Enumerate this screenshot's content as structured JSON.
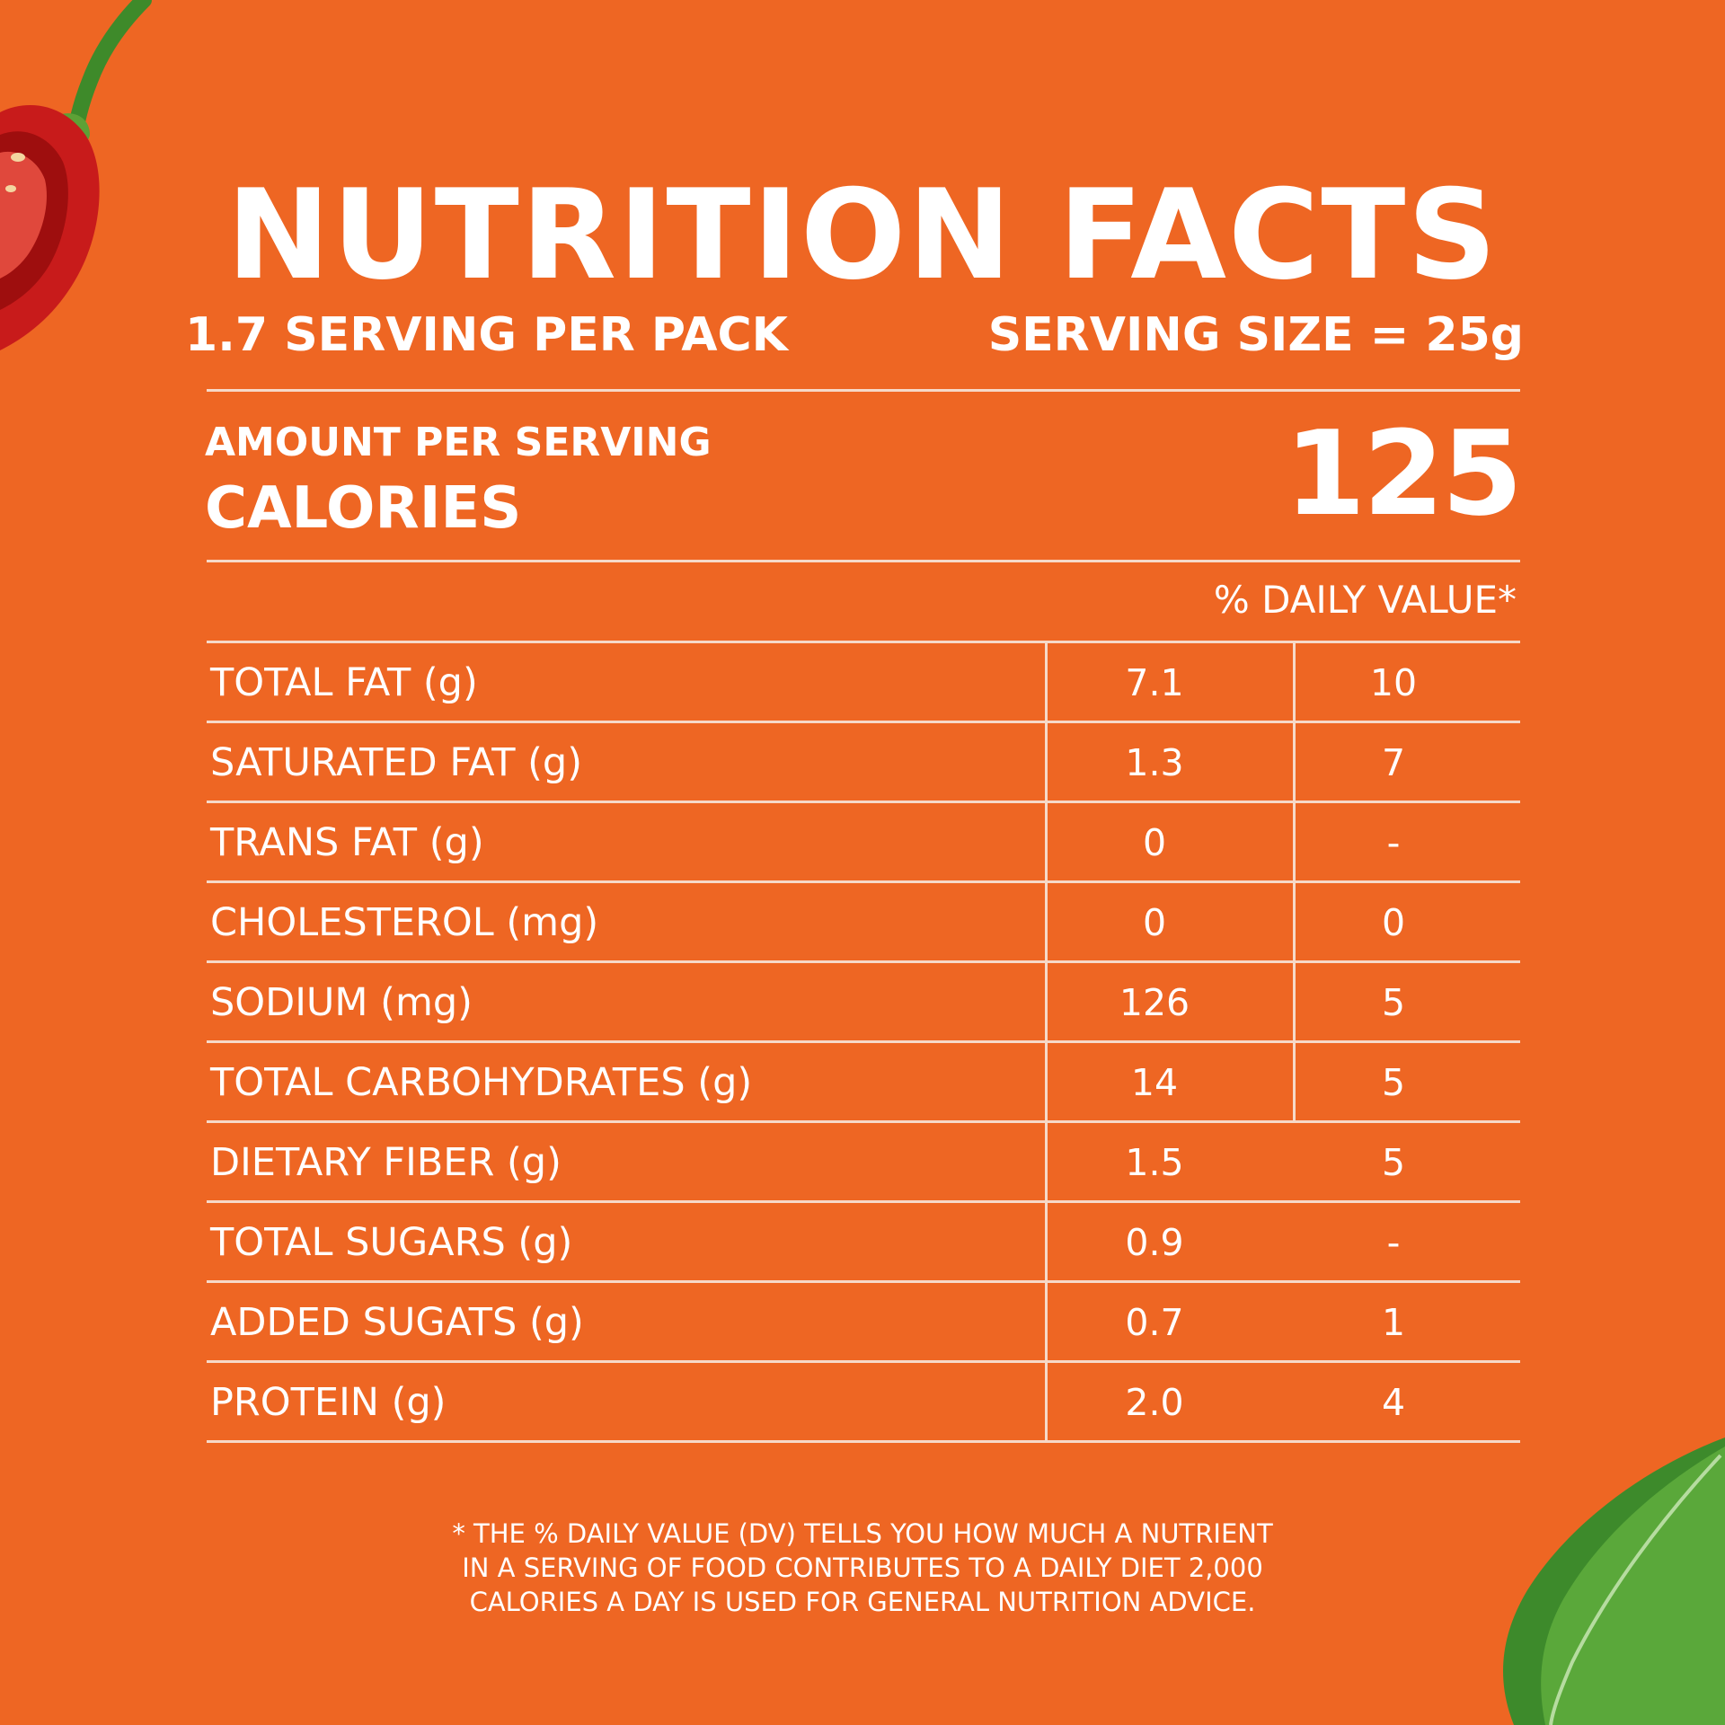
{
  "header": {
    "title": "NUTRITION FACTS",
    "servings_per_pack": "1.7 SERVING PER PACK",
    "serving_size": "SERVING SIZE = 25g"
  },
  "calories": {
    "amount_label": "AMOUNT PER SERVING",
    "label": "CALORIES",
    "value": "125"
  },
  "daily_value_header": "% DAILY VALUE*",
  "nutrients": [
    {
      "label": "TOTAL FAT (g)",
      "amount": "7.1",
      "dv": "10"
    },
    {
      "label": "SATURATED FAT (g)",
      "amount": "1.3",
      "dv": "7"
    },
    {
      "label": "TRANS FAT (g)",
      "amount": "0",
      "dv": "-"
    },
    {
      "label": "CHOLESTEROL (mg)",
      "amount": "0",
      "dv": "0"
    },
    {
      "label": "SODIUM (mg)",
      "amount": "126",
      "dv": "5"
    },
    {
      "label": "TOTAL CARBOHYDRATES (g)",
      "amount": "14",
      "dv": "5"
    },
    {
      "label": "DIETARY FIBER (g)",
      "amount": "1.5",
      "dv": "5"
    },
    {
      "label": "TOTAL SUGARS (g)",
      "amount": "0.9",
      "dv": "-"
    },
    {
      "label": "ADDED SUGATS (g)",
      "amount": "0.7",
      "dv": "1"
    },
    {
      "label": "PROTEIN (g)",
      "amount": "2.0",
      "dv": "4"
    }
  ],
  "footnote": {
    "line1": "* THE % DAILY VALUE (DV) TELLS YOU HOW MUCH A NUTRIENT",
    "line2": "IN A SERVING OF FOOD CONTRIBUTES TO A DAILY DIET 2,000",
    "line3": "CALORIES A DAY IS USED FOR GENERAL NUTRITION ADVICE."
  },
  "decorations": {
    "top_left": "red-chili-pepper-icon",
    "bottom_right": "green-leaf-icon"
  },
  "colors": {
    "background": "#ee6623",
    "text": "#ffffff",
    "rule": "#f6d9c8"
  }
}
